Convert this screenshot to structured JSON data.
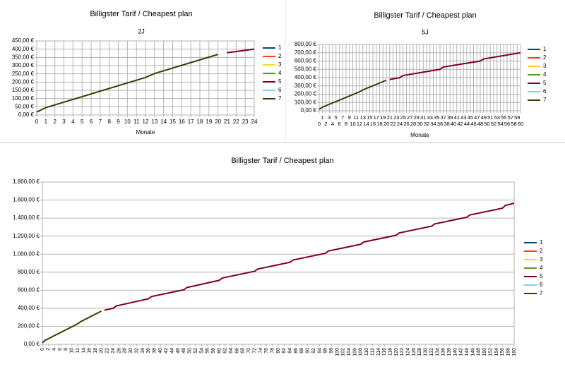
{
  "chart_data": [
    {
      "type": "line",
      "title": "Billigster Tarif / Cheapest plan",
      "subtitle": "2J",
      "x_label": "Monate",
      "grid": "both",
      "legend": "right",
      "x": [
        0,
        1,
        12,
        13,
        20,
        21,
        24
      ],
      "xlim": [
        0,
        24
      ],
      "xticks": [
        0,
        1,
        2,
        3,
        4,
        5,
        6,
        7,
        8,
        9,
        10,
        11,
        12,
        13,
        14,
        15,
        16,
        17,
        18,
        19,
        20,
        21,
        22,
        23,
        24
      ],
      "ylim": [
        0,
        450
      ],
      "yticks": [
        {
          "value": 0,
          "label": "0,00 €"
        },
        {
          "value": 50,
          "label": "50,00 €"
        },
        {
          "value": 100,
          "label": "100,00 €"
        },
        {
          "value": 150,
          "label": "150,00 €"
        },
        {
          "value": 200,
          "label": "200,00 €"
        },
        {
          "value": 250,
          "label": "250,00 €"
        },
        {
          "value": 300,
          "label": "300,00 €"
        },
        {
          "value": 350,
          "label": "350,00 €"
        },
        {
          "value": 400,
          "label": "400,00 €"
        },
        {
          "value": 450,
          "label": "450,00 €"
        }
      ],
      "series": [
        {
          "name": "1",
          "color": "#004586",
          "values": [
            null,
            null,
            null,
            null,
            null,
            null,
            null
          ]
        },
        {
          "name": "2",
          "color": "#ff420e",
          "values": [
            null,
            null,
            null,
            null,
            null,
            null,
            null
          ]
        },
        {
          "name": "3",
          "color": "#ffd320",
          "values": [
            null,
            null,
            null,
            null,
            null,
            null,
            null
          ]
        },
        {
          "name": "4",
          "color": "#579d1c",
          "values": [
            null,
            null,
            null,
            null,
            null,
            null,
            null
          ]
        },
        {
          "name": "5",
          "color": "#7e0021",
          "values": [
            null,
            null,
            null,
            null,
            null,
            378,
            400
          ]
        },
        {
          "name": "6",
          "color": "#83caff",
          "values": [
            null,
            null,
            null,
            null,
            null,
            null,
            null
          ]
        },
        {
          "name": "7",
          "color": "#314004",
          "values": [
            18,
            45,
            228,
            252,
            368,
            null,
            null
          ]
        }
      ]
    },
    {
      "type": "line",
      "title": "Billigster Tarif / Cheapest plan",
      "subtitle": "5J",
      "x_label": "Monate",
      "grid": "both",
      "legend": "right",
      "x": [
        0,
        1,
        12,
        13,
        20,
        21,
        24,
        25,
        36,
        37,
        48,
        49,
        60
      ],
      "xlim": [
        0,
        60
      ],
      "xticks": [
        0,
        1,
        2,
        3,
        4,
        5,
        6,
        7,
        8,
        9,
        10,
        11,
        12,
        13,
        14,
        15,
        16,
        17,
        18,
        19,
        20,
        21,
        22,
        23,
        24,
        25,
        26,
        27,
        28,
        29,
        30,
        31,
        32,
        33,
        34,
        35,
        36,
        37,
        38,
        39,
        40,
        41,
        42,
        43,
        44,
        45,
        46,
        47,
        48,
        49,
        50,
        51,
        52,
        53,
        54,
        55,
        56,
        57,
        58,
        59,
        60
      ],
      "ylim": [
        0,
        800
      ],
      "yticks": [
        {
          "value": 0,
          "label": "0,00 €"
        },
        {
          "value": 100,
          "label": "100,00 €"
        },
        {
          "value": 200,
          "label": "200,00 €"
        },
        {
          "value": 300,
          "label": "300,00 €"
        },
        {
          "value": 400,
          "label": "400,00 €"
        },
        {
          "value": 500,
          "label": "500,00 €"
        },
        {
          "value": 600,
          "label": "600,00 €"
        },
        {
          "value": 700,
          "label": "700,00 €"
        },
        {
          "value": 800,
          "label": "800,00 €"
        }
      ],
      "series": [
        {
          "name": "1",
          "color": "#004586",
          "values": [
            null,
            null,
            null,
            null,
            null,
            null,
            null,
            null,
            null,
            null,
            null,
            null,
            null
          ]
        },
        {
          "name": "2",
          "color": "#ff420e",
          "values": [
            null,
            null,
            null,
            null,
            null,
            null,
            null,
            null,
            null,
            null,
            null,
            null,
            null
          ]
        },
        {
          "name": "3",
          "color": "#ffd320",
          "values": [
            null,
            null,
            null,
            null,
            null,
            null,
            null,
            null,
            null,
            null,
            null,
            null,
            null
          ]
        },
        {
          "name": "4",
          "color": "#579d1c",
          "values": [
            null,
            null,
            null,
            null,
            null,
            null,
            null,
            null,
            null,
            null,
            null,
            null,
            null
          ]
        },
        {
          "name": "5",
          "color": "#7e0021",
          "values": [
            null,
            null,
            null,
            null,
            null,
            378,
            400,
            425,
            500,
            528,
            600,
            625,
            700
          ]
        },
        {
          "name": "6",
          "color": "#83caff",
          "values": [
            null,
            null,
            null,
            null,
            null,
            null,
            null,
            null,
            null,
            null,
            null,
            null,
            null
          ]
        },
        {
          "name": "7",
          "color": "#314004",
          "values": [
            18,
            45,
            228,
            252,
            368,
            null,
            null,
            null,
            null,
            null,
            null,
            null,
            null
          ]
        }
      ]
    },
    {
      "type": "line",
      "title": "Billigster Tarif / Cheapest plan",
      "grid": "y",
      "legend": "right",
      "x": [
        0,
        1,
        12,
        13,
        20,
        21,
        24,
        25,
        36,
        37,
        48,
        49,
        60,
        61,
        72,
        73,
        84,
        85,
        96,
        97,
        108,
        109,
        120,
        121,
        132,
        133,
        144,
        145,
        156,
        157,
        160
      ],
      "xlim": [
        0,
        160
      ],
      "xticks": [
        0,
        2,
        4,
        6,
        8,
        10,
        12,
        14,
        16,
        18,
        20,
        22,
        24,
        26,
        28,
        30,
        32,
        34,
        36,
        38,
        40,
        42,
        44,
        46,
        48,
        50,
        52,
        54,
        56,
        58,
        60,
        62,
        64,
        66,
        68,
        70,
        72,
        74,
        76,
        78,
        80,
        82,
        84,
        86,
        88,
        90,
        92,
        94,
        96,
        98,
        100,
        102,
        104,
        106,
        108,
        110,
        112,
        114,
        116,
        118,
        120,
        122,
        124,
        126,
        128,
        130,
        132,
        134,
        136,
        138,
        140,
        142,
        144,
        146,
        148,
        150,
        152,
        154,
        156,
        158,
        160
      ],
      "ylim": [
        0,
        1800
      ],
      "yticks": [
        {
          "value": 0,
          "label": "0,00 €"
        },
        {
          "value": 200,
          "label": "200,00 €"
        },
        {
          "value": 400,
          "label": "400,00 €"
        },
        {
          "value": 600,
          "label": "600,00 €"
        },
        {
          "value": 800,
          "label": "800,00 €"
        },
        {
          "value": 1000,
          "label": "1.000,00 €"
        },
        {
          "value": 1200,
          "label": "1.200,00 €"
        },
        {
          "value": 1400,
          "label": "1.400,00 €"
        },
        {
          "value": 1600,
          "label": "1.600,00 €"
        },
        {
          "value": 1800,
          "label": "1.800,00 €"
        }
      ],
      "series": [
        {
          "name": "1",
          "color": "#004586",
          "values": [
            null,
            null,
            null,
            null,
            null,
            null,
            null,
            null,
            null,
            null,
            null,
            null,
            null,
            null,
            null,
            null,
            null,
            null,
            null,
            null,
            null,
            null,
            null,
            null,
            null,
            null,
            null,
            null,
            null,
            null,
            null
          ]
        },
        {
          "name": "2",
          "color": "#ff420e",
          "values": [
            null,
            null,
            null,
            null,
            null,
            null,
            null,
            null,
            null,
            null,
            null,
            null,
            null,
            null,
            null,
            null,
            null,
            null,
            null,
            null,
            null,
            null,
            null,
            null,
            null,
            null,
            null,
            null,
            null,
            null,
            null
          ]
        },
        {
          "name": "3",
          "color": "#ffd320",
          "values": [
            null,
            null,
            null,
            null,
            null,
            null,
            null,
            null,
            null,
            null,
            null,
            null,
            null,
            null,
            null,
            null,
            null,
            null,
            null,
            null,
            null,
            null,
            null,
            null,
            null,
            null,
            null,
            null,
            null,
            null,
            null
          ]
        },
        {
          "name": "4",
          "color": "#579d1c",
          "values": [
            null,
            null,
            null,
            null,
            null,
            null,
            null,
            null,
            null,
            null,
            null,
            null,
            null,
            null,
            null,
            null,
            null,
            null,
            null,
            null,
            null,
            null,
            null,
            null,
            null,
            null,
            null,
            null,
            null,
            null,
            null
          ]
        },
        {
          "name": "5",
          "color": "#7e0021",
          "values": [
            null,
            null,
            null,
            null,
            null,
            378,
            400,
            425,
            505,
            530,
            605,
            630,
            710,
            735,
            810,
            835,
            910,
            935,
            1010,
            1035,
            1110,
            1135,
            1210,
            1235,
            1310,
            1335,
            1410,
            1435,
            1510,
            1540,
            1565
          ]
        },
        {
          "name": "6",
          "color": "#83caff",
          "values": [
            null,
            null,
            null,
            null,
            null,
            null,
            null,
            null,
            null,
            null,
            null,
            null,
            null,
            null,
            null,
            null,
            null,
            null,
            null,
            null,
            null,
            null,
            null,
            null,
            null,
            null,
            null,
            null,
            null,
            null,
            null
          ]
        },
        {
          "name": "7",
          "color": "#314004",
          "values": [
            18,
            45,
            228,
            252,
            368,
            null,
            null,
            null,
            null,
            null,
            null,
            null,
            null,
            null,
            null,
            null,
            null,
            null,
            null,
            null,
            null,
            null,
            null,
            null,
            null,
            null,
            null,
            null,
            null,
            null,
            null
          ]
        }
      ]
    }
  ]
}
